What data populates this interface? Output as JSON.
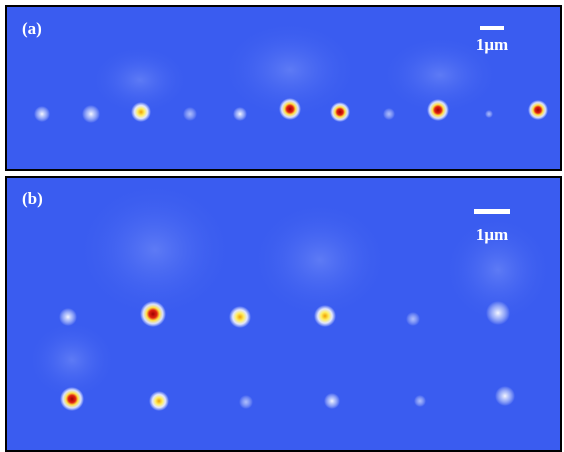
{
  "panels": [
    {
      "label": "(a)",
      "scale_bar": "1μm"
    },
    {
      "label": "(b)",
      "scale_bar": "1μm"
    }
  ]
}
